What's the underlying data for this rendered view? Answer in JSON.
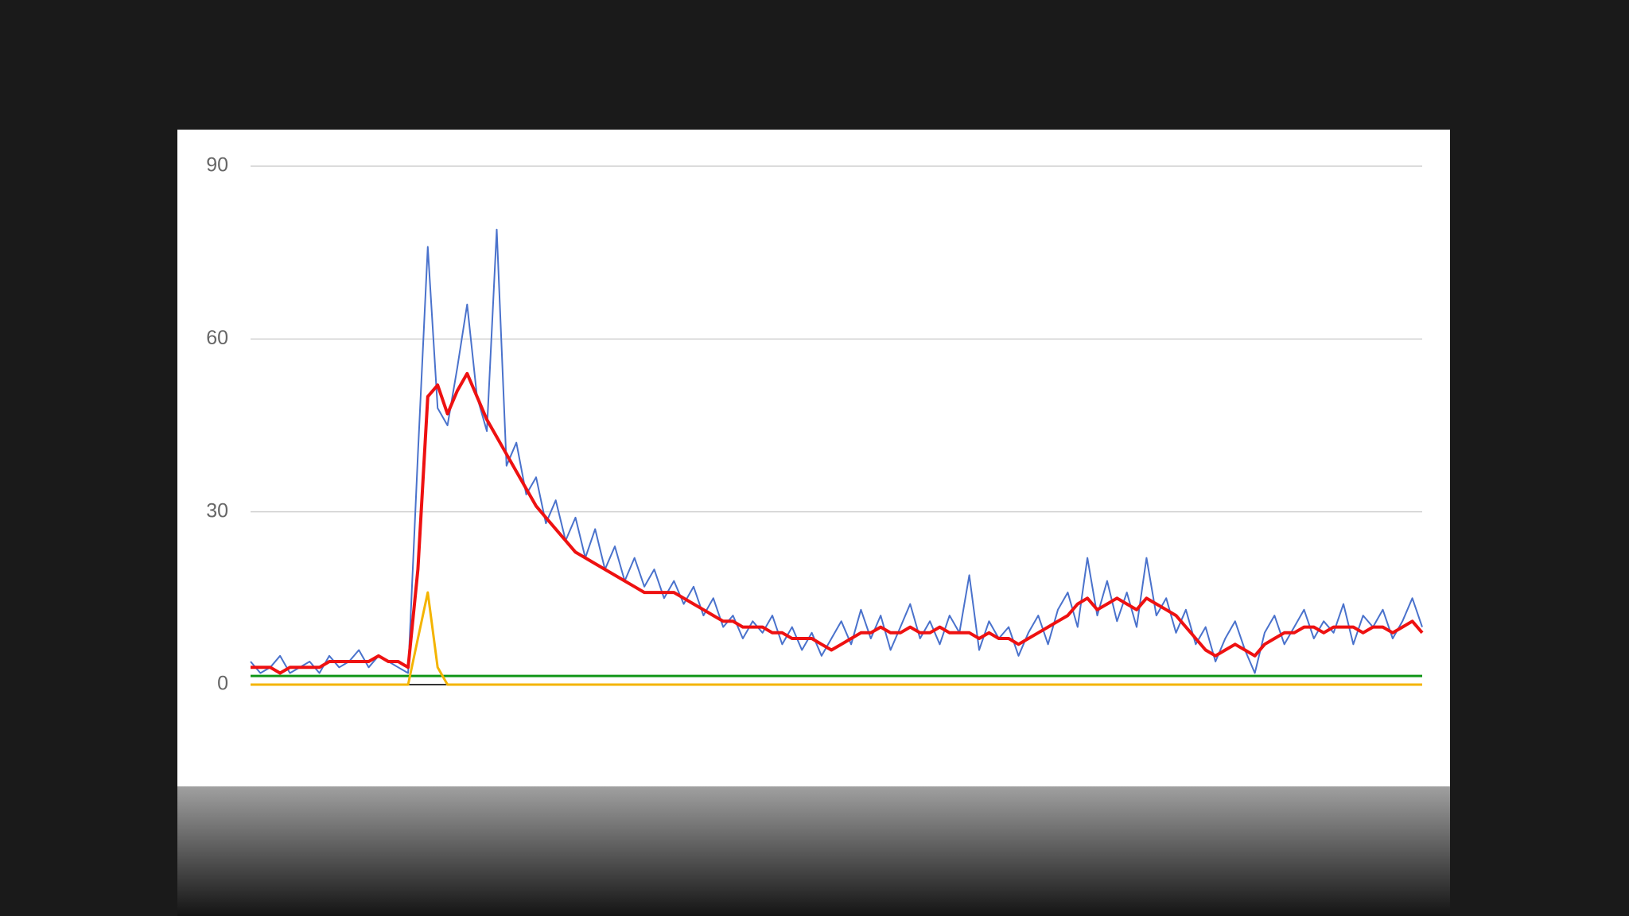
{
  "chart_data": {
    "type": "line",
    "ylim": [
      0,
      90
    ],
    "yticks": [
      0,
      30,
      60,
      90
    ],
    "grid": true,
    "series": [
      {
        "color": "#109618",
        "values": [
          1.5,
          1.5,
          1.5,
          1.5,
          1.5,
          1.5,
          1.5,
          1.5,
          1.5,
          1.5,
          1.5,
          1.5,
          1.5,
          1.5,
          1.5,
          1.5,
          1.5,
          1.5,
          1.5,
          1.5,
          1.5,
          1.5,
          1.5,
          1.5,
          1.5,
          1.5,
          1.5,
          1.5,
          1.5,
          1.5,
          1.5,
          1.5,
          1.5,
          1.5,
          1.5,
          1.5,
          1.5,
          1.5,
          1.5,
          1.5,
          1.5,
          1.5,
          1.5,
          1.5,
          1.5,
          1.5,
          1.5,
          1.5,
          1.5,
          1.5,
          1.5,
          1.5,
          1.5,
          1.5,
          1.5,
          1.5,
          1.5,
          1.5,
          1.5,
          1.5,
          1.5,
          1.5,
          1.5,
          1.5,
          1.5,
          1.5,
          1.5,
          1.5,
          1.5,
          1.5,
          1.5,
          1.5,
          1.5,
          1.5,
          1.5,
          1.5,
          1.5,
          1.5,
          1.5,
          1.5,
          1.5,
          1.5,
          1.5,
          1.5,
          1.5,
          1.5,
          1.5,
          1.5,
          1.5,
          1.5,
          1.5,
          1.5,
          1.5,
          1.5,
          1.5,
          1.5,
          1.5,
          1.5,
          1.5,
          1.5,
          1.5,
          1.5,
          1.5,
          1.5,
          1.5,
          1.5,
          1.5,
          1.5,
          1.5,
          1.5,
          1.5,
          1.5,
          1.5,
          1.5,
          1.5,
          1.5,
          1.5,
          1.5,
          1.5,
          1.5
        ]
      },
      {
        "color": "#f4b400",
        "values": [
          0,
          0,
          0,
          0,
          0,
          0,
          0,
          0,
          0,
          0,
          0,
          0,
          0,
          0,
          0,
          0,
          0,
          8,
          16,
          3,
          0,
          0,
          0,
          0,
          0,
          0,
          0,
          0,
          0,
          0,
          0,
          0,
          0,
          0,
          0,
          0,
          0,
          0,
          0,
          0,
          0,
          0,
          0,
          0,
          0,
          0,
          0,
          0,
          0,
          0,
          0,
          0,
          0,
          0,
          0,
          0,
          0,
          0,
          0,
          0,
          0,
          0,
          0,
          0,
          0,
          0,
          0,
          0,
          0,
          0,
          0,
          0,
          0,
          0,
          0,
          0,
          0,
          0,
          0,
          0,
          0,
          0,
          0,
          0,
          0,
          0,
          0,
          0,
          0,
          0,
          0,
          0,
          0,
          0,
          0,
          0,
          0,
          0,
          0,
          0,
          0,
          0,
          0,
          0,
          0,
          0,
          0,
          0,
          0,
          0,
          0,
          0,
          0,
          0,
          0,
          0,
          0,
          0,
          0,
          0
        ]
      },
      {
        "color": "#4a72cc",
        "values": [
          4,
          2,
          3,
          5,
          2,
          3,
          4,
          2,
          5,
          3,
          4,
          6,
          3,
          5,
          4,
          3,
          2,
          40,
          76,
          48,
          45,
          55,
          66,
          50,
          44,
          79,
          38,
          42,
          33,
          36,
          28,
          32,
          25,
          29,
          22,
          27,
          20,
          24,
          18,
          22,
          17,
          20,
          15,
          18,
          14,
          17,
          12,
          15,
          10,
          12,
          8,
          11,
          9,
          12,
          7,
          10,
          6,
          9,
          5,
          8,
          11,
          7,
          13,
          8,
          12,
          6,
          10,
          14,
          8,
          11,
          7,
          12,
          9,
          19,
          6,
          11,
          8,
          10,
          5,
          9,
          12,
          7,
          13,
          16,
          10,
          22,
          12,
          18,
          11,
          16,
          10,
          22,
          12,
          15,
          9,
          13,
          7,
          10,
          4,
          8,
          11,
          6,
          2,
          9,
          12,
          7,
          10,
          13,
          8,
          11,
          9,
          14,
          7,
          12,
          10,
          13,
          8,
          11,
          15,
          10
        ]
      },
      {
        "color": "#ee1111",
        "values": [
          3,
          3,
          3,
          2,
          3,
          3,
          3,
          3,
          4,
          4,
          4,
          4,
          4,
          5,
          4,
          4,
          3,
          20,
          50,
          52,
          47,
          51,
          54,
          50,
          46,
          43,
          40,
          37,
          34,
          31,
          29,
          27,
          25,
          23,
          22,
          21,
          20,
          19,
          18,
          17,
          16,
          16,
          16,
          16,
          15,
          14,
          13,
          12,
          11,
          11,
          10,
          10,
          10,
          9,
          9,
          8,
          8,
          8,
          7,
          6,
          7,
          8,
          9,
          9,
          10,
          9,
          9,
          10,
          9,
          9,
          10,
          9,
          9,
          9,
          8,
          9,
          8,
          8,
          7,
          8,
          9,
          10,
          11,
          12,
          14,
          15,
          13,
          14,
          15,
          14,
          13,
          15,
          14,
          13,
          12,
          10,
          8,
          6,
          5,
          6,
          7,
          6,
          5,
          7,
          8,
          9,
          9,
          10,
          10,
          9,
          10,
          10,
          10,
          9,
          10,
          10,
          9,
          10,
          11,
          9
        ]
      }
    ]
  }
}
